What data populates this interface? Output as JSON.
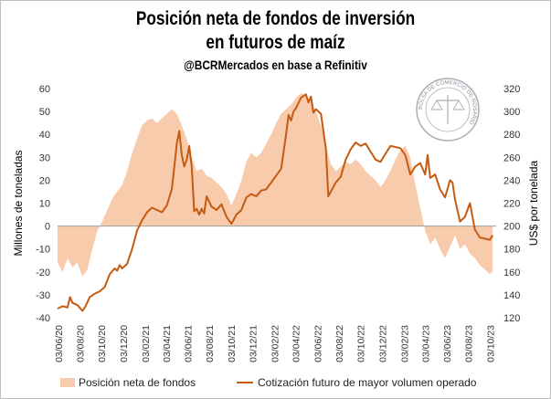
{
  "title_line1": "Posición neta de fondos de inversión",
  "title_line2": "en futuros de maíz",
  "subtitle": "@BCRMercados en base a Refinitiv",
  "watermark": {
    "text": "BOLSA DE COMERCIO DE ROSARIO",
    "color": "#9aa0aa"
  },
  "chart_data": {
    "type": "area+line",
    "title": "Posición neta de fondos de inversión en futuros de maíz",
    "subtitle": "@BCRMercados en base a Refinitiv",
    "ylabel_left": "Millones de toneladas",
    "ylabel_right": "US$ por tonelada",
    "ylim_left": [
      -40,
      60
    ],
    "ylim_right": [
      120,
      320
    ],
    "yticks_left": [
      "60",
      "50",
      "40",
      "30",
      "20",
      "10",
      "0",
      "-10",
      "-20",
      "-30",
      "-40"
    ],
    "yticks_right": [
      "320",
      "300",
      "280",
      "260",
      "240",
      "220",
      "200",
      "180",
      "160",
      "140",
      "120"
    ],
    "xlim": [
      "2020-06-01",
      "2023-10-20"
    ],
    "xtick_labels": [
      "03/06/20",
      "03/08/20",
      "03/10/20",
      "03/12/20",
      "03/02/21",
      "03/04/21",
      "03/06/21",
      "03/08/21",
      "03/10/21",
      "03/12/21",
      "03/02/22",
      "03/04/22",
      "03/06/22",
      "03/08/22",
      "03/10/22",
      "03/12/22",
      "03/02/23",
      "03/04/23",
      "03/06/23",
      "03/08/23",
      "03/10/23"
    ],
    "xtick_dates": [
      "2020-06-03",
      "2020-08-03",
      "2020-10-03",
      "2020-12-03",
      "2021-02-03",
      "2021-04-03",
      "2021-06-03",
      "2021-08-03",
      "2021-10-03",
      "2021-12-03",
      "2022-02-03",
      "2022-04-03",
      "2022-06-03",
      "2022-08-03",
      "2022-10-03",
      "2022-12-03",
      "2023-02-03",
      "2023-04-03",
      "2023-06-03",
      "2023-08-03",
      "2023-10-03"
    ],
    "legend_position": "bottom",
    "grid": false,
    "series": [
      {
        "name": "Posición neta de fondos",
        "axis": "left",
        "kind": "area",
        "color": "#f8cbad",
        "points": [
          [
            "2020-06-01",
            -16
          ],
          [
            "2020-06-15",
            -20
          ],
          [
            "2020-06-29",
            -14
          ],
          [
            "2020-07-13",
            -18
          ],
          [
            "2020-07-27",
            -16
          ],
          [
            "2020-08-10",
            -22
          ],
          [
            "2020-08-24",
            -19
          ],
          [
            "2020-09-07",
            -10
          ],
          [
            "2020-09-21",
            -2
          ],
          [
            "2020-10-05",
            2
          ],
          [
            "2020-10-19",
            7
          ],
          [
            "2020-11-02",
            12
          ],
          [
            "2020-11-16",
            15
          ],
          [
            "2020-11-30",
            18
          ],
          [
            "2020-12-14",
            24
          ],
          [
            "2020-12-28",
            32
          ],
          [
            "2021-01-11",
            38
          ],
          [
            "2021-01-25",
            44
          ],
          [
            "2021-02-08",
            46
          ],
          [
            "2021-02-22",
            47
          ],
          [
            "2021-03-08",
            45
          ],
          [
            "2021-03-22",
            47
          ],
          [
            "2021-04-05",
            49
          ],
          [
            "2021-04-19",
            51
          ],
          [
            "2021-05-03",
            49
          ],
          [
            "2021-05-17",
            44
          ],
          [
            "2021-05-31",
            38
          ],
          [
            "2021-06-14",
            30
          ],
          [
            "2021-06-28",
            24
          ],
          [
            "2021-07-12",
            25
          ],
          [
            "2021-07-26",
            22
          ],
          [
            "2021-08-09",
            21
          ],
          [
            "2021-08-23",
            19
          ],
          [
            "2021-09-06",
            17
          ],
          [
            "2021-09-20",
            14
          ],
          [
            "2021-10-04",
            9
          ],
          [
            "2021-10-18",
            14
          ],
          [
            "2021-11-01",
            20
          ],
          [
            "2021-11-15",
            28
          ],
          [
            "2021-11-29",
            32
          ],
          [
            "2021-12-13",
            30
          ],
          [
            "2021-12-27",
            32
          ],
          [
            "2022-01-10",
            36
          ],
          [
            "2022-01-24",
            40
          ],
          [
            "2022-02-07",
            45
          ],
          [
            "2022-02-21",
            49
          ],
          [
            "2022-03-07",
            51
          ],
          [
            "2022-03-21",
            53
          ],
          [
            "2022-04-04",
            56
          ],
          [
            "2022-04-18",
            58
          ],
          [
            "2022-05-02",
            57
          ],
          [
            "2022-05-16",
            54
          ],
          [
            "2022-05-30",
            50
          ],
          [
            "2022-06-13",
            44
          ],
          [
            "2022-06-27",
            35
          ],
          [
            "2022-07-11",
            27
          ],
          [
            "2022-07-25",
            24
          ],
          [
            "2022-08-08",
            26
          ],
          [
            "2022-08-22",
            28
          ],
          [
            "2022-09-05",
            27
          ],
          [
            "2022-09-19",
            29
          ],
          [
            "2022-10-03",
            27
          ],
          [
            "2022-10-17",
            24
          ],
          [
            "2022-10-31",
            22
          ],
          [
            "2022-11-14",
            20
          ],
          [
            "2022-11-28",
            17
          ],
          [
            "2022-12-12",
            20
          ],
          [
            "2022-12-26",
            24
          ],
          [
            "2023-01-09",
            29
          ],
          [
            "2023-01-23",
            33
          ],
          [
            "2023-02-06",
            35
          ],
          [
            "2023-02-20",
            30
          ],
          [
            "2023-03-06",
            18
          ],
          [
            "2023-03-20",
            8
          ],
          [
            "2023-04-03",
            -2
          ],
          [
            "2023-04-17",
            -8
          ],
          [
            "2023-05-01",
            -5
          ],
          [
            "2023-05-15",
            -10
          ],
          [
            "2023-05-29",
            -14
          ],
          [
            "2023-06-12",
            -9
          ],
          [
            "2023-06-26",
            -4
          ],
          [
            "2023-07-10",
            -10
          ],
          [
            "2023-07-24",
            -8
          ],
          [
            "2023-08-07",
            -12
          ],
          [
            "2023-08-21",
            -14
          ],
          [
            "2023-09-04",
            -17
          ],
          [
            "2023-09-18",
            -19
          ],
          [
            "2023-10-02",
            -21
          ],
          [
            "2023-10-10",
            -20
          ]
        ]
      },
      {
        "name": "Cotización futuro de mayor volumen operado",
        "axis": "right",
        "kind": "line",
        "color": "#c55a11",
        "points": [
          [
            "2020-06-01",
            128
          ],
          [
            "2020-06-15",
            130
          ],
          [
            "2020-06-29",
            129
          ],
          [
            "2020-07-06",
            138
          ],
          [
            "2020-07-13",
            133
          ],
          [
            "2020-07-27",
            131
          ],
          [
            "2020-08-10",
            126
          ],
          [
            "2020-08-17",
            129
          ],
          [
            "2020-08-31",
            138
          ],
          [
            "2020-09-14",
            141
          ],
          [
            "2020-09-28",
            143
          ],
          [
            "2020-10-12",
            147
          ],
          [
            "2020-10-26",
            158
          ],
          [
            "2020-11-09",
            163
          ],
          [
            "2020-11-16",
            161
          ],
          [
            "2020-11-23",
            166
          ],
          [
            "2020-11-30",
            163
          ],
          [
            "2020-12-14",
            167
          ],
          [
            "2020-12-28",
            180
          ],
          [
            "2021-01-11",
            196
          ],
          [
            "2021-01-25",
            205
          ],
          [
            "2021-02-08",
            212
          ],
          [
            "2021-02-22",
            216
          ],
          [
            "2021-03-08",
            214
          ],
          [
            "2021-03-22",
            212
          ],
          [
            "2021-04-05",
            218
          ],
          [
            "2021-04-19",
            232
          ],
          [
            "2021-04-26",
            252
          ],
          [
            "2021-05-03",
            272
          ],
          [
            "2021-05-10",
            283
          ],
          [
            "2021-05-17",
            262
          ],
          [
            "2021-05-24",
            252
          ],
          [
            "2021-05-31",
            258
          ],
          [
            "2021-06-07",
            270
          ],
          [
            "2021-06-14",
            252
          ],
          [
            "2021-06-21",
            213
          ],
          [
            "2021-06-28",
            215
          ],
          [
            "2021-07-05",
            210
          ],
          [
            "2021-07-12",
            215
          ],
          [
            "2021-07-19",
            211
          ],
          [
            "2021-07-26",
            226
          ],
          [
            "2021-08-09",
            217
          ],
          [
            "2021-08-23",
            214
          ],
          [
            "2021-09-06",
            219
          ],
          [
            "2021-09-20",
            208
          ],
          [
            "2021-10-04",
            202
          ],
          [
            "2021-10-18",
            210
          ],
          [
            "2021-11-01",
            214
          ],
          [
            "2021-11-15",
            225
          ],
          [
            "2021-11-29",
            228
          ],
          [
            "2021-12-13",
            226
          ],
          [
            "2021-12-27",
            231
          ],
          [
            "2022-01-10",
            232
          ],
          [
            "2022-01-24",
            238
          ],
          [
            "2022-02-07",
            244
          ],
          [
            "2022-02-21",
            250
          ],
          [
            "2022-03-07",
            280
          ],
          [
            "2022-03-14",
            297
          ],
          [
            "2022-03-21",
            292
          ],
          [
            "2022-03-28",
            300
          ],
          [
            "2022-04-04",
            303
          ],
          [
            "2022-04-18",
            312
          ],
          [
            "2022-05-02",
            315
          ],
          [
            "2022-05-09",
            308
          ],
          [
            "2022-05-16",
            313
          ],
          [
            "2022-05-23",
            299
          ],
          [
            "2022-05-30",
            302
          ],
          [
            "2022-06-13",
            298
          ],
          [
            "2022-06-27",
            268
          ],
          [
            "2022-07-04",
            226
          ],
          [
            "2022-07-11",
            230
          ],
          [
            "2022-07-25",
            238
          ],
          [
            "2022-08-08",
            243
          ],
          [
            "2022-08-22",
            258
          ],
          [
            "2022-09-05",
            267
          ],
          [
            "2022-09-19",
            273
          ],
          [
            "2022-10-03",
            270
          ],
          [
            "2022-10-17",
            272
          ],
          [
            "2022-10-31",
            265
          ],
          [
            "2022-11-14",
            258
          ],
          [
            "2022-11-28",
            256
          ],
          [
            "2022-12-12",
            263
          ],
          [
            "2022-12-26",
            270
          ],
          [
            "2023-01-09",
            269
          ],
          [
            "2023-01-23",
            268
          ],
          [
            "2023-02-06",
            262
          ],
          [
            "2023-02-20",
            245
          ],
          [
            "2023-03-06",
            252
          ],
          [
            "2023-03-20",
            255
          ],
          [
            "2023-04-03",
            245
          ],
          [
            "2023-04-10",
            262
          ],
          [
            "2023-04-17",
            242
          ],
          [
            "2023-05-01",
            245
          ],
          [
            "2023-05-15",
            232
          ],
          [
            "2023-05-29",
            225
          ],
          [
            "2023-06-12",
            240
          ],
          [
            "2023-06-19",
            238
          ],
          [
            "2023-06-26",
            223
          ],
          [
            "2023-07-10",
            204
          ],
          [
            "2023-07-24",
            208
          ],
          [
            "2023-08-07",
            220
          ],
          [
            "2023-08-21",
            197
          ],
          [
            "2023-09-04",
            190
          ],
          [
            "2023-09-18",
            189
          ],
          [
            "2023-10-02",
            188
          ],
          [
            "2023-10-10",
            192
          ]
        ]
      }
    ]
  }
}
